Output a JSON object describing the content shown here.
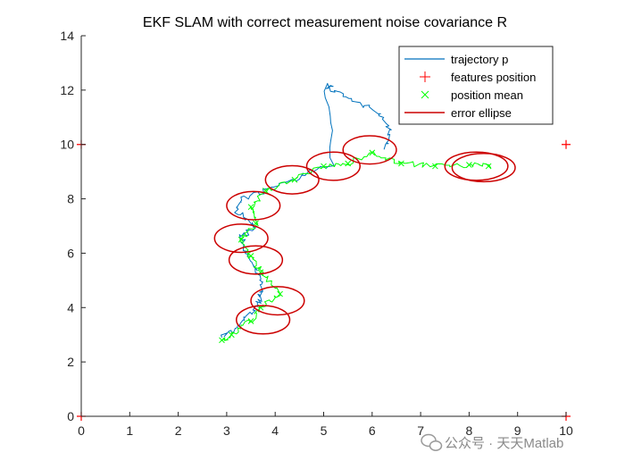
{
  "chart_data": {
    "type": "scatter",
    "title": "EKF SLAM with correct measurement noise covariance R",
    "xlabel": "",
    "ylabel": "",
    "xlim": [
      0,
      10
    ],
    "ylim": [
      0,
      14
    ],
    "x_ticks": [
      "0",
      "1",
      "2",
      "3",
      "4",
      "5",
      "6",
      "7",
      "8",
      "9",
      "10"
    ],
    "y_ticks": [
      "0",
      "2",
      "4",
      "6",
      "8",
      "10",
      "12",
      "14"
    ],
    "grid": false,
    "legend_position": "top-right",
    "legend": [
      {
        "name": "trajectory p",
        "marker": "line",
        "color": "#0072BD"
      },
      {
        "name": "features position",
        "marker": "plus",
        "color": "#FF0000"
      },
      {
        "name": "position mean",
        "marker": "x",
        "color": "#00FF00"
      },
      {
        "name": "error ellipse",
        "marker": "line",
        "color": "#CC0000"
      }
    ],
    "series": [
      {
        "name": "trajectory p",
        "kind": "line",
        "color": "#0072BD",
        "points": [
          [
            6.3,
            9.9
          ],
          [
            6.35,
            10.6
          ],
          [
            6.1,
            11.2
          ],
          [
            5.6,
            11.6
          ],
          [
            5.2,
            12.0
          ],
          [
            5.05,
            12.2
          ],
          [
            5.2,
            9.3
          ],
          [
            4.6,
            8.9
          ],
          [
            3.9,
            8.4
          ],
          [
            3.3,
            8.0
          ],
          [
            3.2,
            7.5
          ],
          [
            3.6,
            7.0
          ],
          [
            3.3,
            6.6
          ],
          [
            3.4,
            6.0
          ],
          [
            3.6,
            5.4
          ],
          [
            3.7,
            4.9
          ],
          [
            3.7,
            4.3
          ],
          [
            3.5,
            3.8
          ],
          [
            3.2,
            3.3
          ],
          [
            2.9,
            2.9
          ]
        ]
      },
      {
        "name": "position mean",
        "kind": "line",
        "color": "#00FF00",
        "points": [
          [
            8.4,
            9.2
          ],
          [
            8.0,
            9.25
          ],
          [
            7.3,
            9.2
          ],
          [
            6.6,
            9.3
          ],
          [
            6.0,
            9.7
          ],
          [
            5.5,
            9.3
          ],
          [
            5.0,
            9.2
          ],
          [
            4.4,
            8.7
          ],
          [
            3.8,
            8.3
          ],
          [
            3.5,
            7.7
          ],
          [
            3.6,
            7.1
          ],
          [
            3.3,
            6.5
          ],
          [
            3.5,
            5.9
          ],
          [
            3.7,
            5.3
          ],
          [
            4.1,
            4.5
          ],
          [
            3.7,
            4.0
          ],
          [
            3.5,
            3.5
          ],
          [
            3.1,
            3.0
          ],
          [
            2.9,
            2.8
          ]
        ]
      },
      {
        "name": "features position",
        "kind": "markers",
        "color": "#FF0000",
        "points": [
          [
            10,
            10
          ],
          [
            0,
            10
          ],
          [
            10,
            0
          ],
          [
            0,
            0
          ]
        ]
      },
      {
        "name": "error ellipse",
        "kind": "ellipses",
        "color": "#CC0000",
        "ellipses": [
          {
            "cx": 3.75,
            "cy": 3.55,
            "rx": 0.55,
            "ry": 0.52
          },
          {
            "cx": 4.05,
            "cy": 4.25,
            "rx": 0.55,
            "ry": 0.52
          },
          {
            "cx": 3.6,
            "cy": 5.75,
            "rx": 0.55,
            "ry": 0.52
          },
          {
            "cx": 3.3,
            "cy": 6.55,
            "rx": 0.55,
            "ry": 0.52
          },
          {
            "cx": 3.55,
            "cy": 7.75,
            "rx": 0.55,
            "ry": 0.52
          },
          {
            "cx": 4.35,
            "cy": 8.7,
            "rx": 0.55,
            "ry": 0.52
          },
          {
            "cx": 5.2,
            "cy": 9.2,
            "rx": 0.55,
            "ry": 0.52
          },
          {
            "cx": 5.95,
            "cy": 9.8,
            "rx": 0.55,
            "ry": 0.52
          },
          {
            "cx": 8.15,
            "cy": 9.2,
            "rx": 0.65,
            "ry": 0.52
          },
          {
            "cx": 8.3,
            "cy": 9.15,
            "rx": 0.65,
            "ry": 0.52
          }
        ]
      }
    ]
  },
  "watermark": {
    "text": "公众号 · 天天Matlab",
    "icon": "wechat-icon"
  }
}
